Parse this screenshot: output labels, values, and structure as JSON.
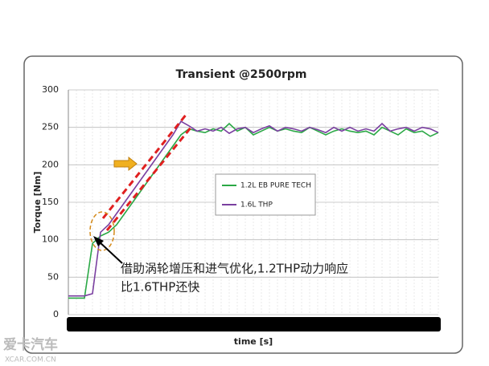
{
  "chart_data": {
    "type": "line",
    "title": "Transient @2500rpm",
    "x_label": "time [s]",
    "y_label": "Torque [Nm]",
    "ylim": [
      0,
      300
    ],
    "yticks": [
      0,
      50,
      100,
      150,
      200,
      250,
      300
    ],
    "grid": true,
    "legend": "center",
    "series": [
      {
        "name": "1.2L EB PURE TECH",
        "color": "#2aa845",
        "values": [
          22,
          22,
          22,
          95,
          105,
          110,
          120,
          135,
          150,
          165,
          180,
          195,
          210,
          225,
          240,
          248,
          245,
          243,
          248,
          245,
          255,
          245,
          250,
          240,
          245,
          250,
          245,
          248,
          245,
          243,
          250,
          245,
          240,
          245,
          248,
          245,
          243,
          245,
          240,
          250,
          245,
          240,
          248,
          243,
          245,
          238,
          243
        ]
      },
      {
        "name": "1.6L THP",
        "color": "#7a3fa0",
        "values": [
          25,
          25,
          25,
          28,
          110,
          120,
          135,
          150,
          165,
          180,
          195,
          210,
          225,
          240,
          258,
          252,
          245,
          248,
          245,
          250,
          242,
          248,
          250,
          243,
          248,
          252,
          245,
          250,
          248,
          245,
          250,
          247,
          243,
          250,
          245,
          250,
          245,
          248,
          245,
          255,
          245,
          248,
          250,
          245,
          250,
          248,
          243
        ]
      }
    ],
    "annotations": [
      "借助涡轮增压和进气优化,1.2THP动力响应",
      "比1.6THP还快"
    ],
    "watermark": [
      "爱卡汽车",
      "XCAR.COM.CN"
    ]
  }
}
